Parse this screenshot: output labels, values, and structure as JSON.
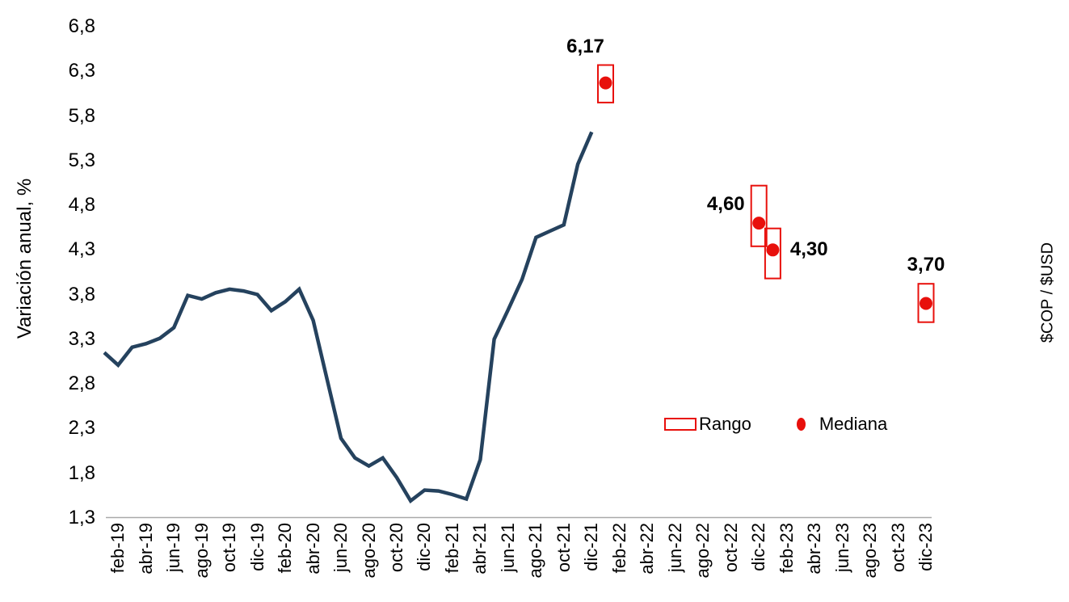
{
  "legend": {
    "rango_label": "Rango",
    "mediana_label": "Mediana"
  },
  "chart_data": {
    "type": "line",
    "title": "",
    "ylabel": "Variación anual, %",
    "right_axis_label": "$COP / $USD",
    "ylim": [
      1.3,
      6.8
    ],
    "ytick_step": 0.5,
    "grid": false,
    "legend_position": "inside-bottom-right",
    "yticks": [
      {
        "v": 6.8,
        "label": "6,8"
      },
      {
        "v": 6.3,
        "label": "6,3"
      },
      {
        "v": 5.8,
        "label": "5,8"
      },
      {
        "v": 5.3,
        "label": "5,3"
      },
      {
        "v": 4.8,
        "label": "4,8"
      },
      {
        "v": 4.3,
        "label": "4,3"
      },
      {
        "v": 3.8,
        "label": "3,8"
      },
      {
        "v": 3.3,
        "label": "3,3"
      },
      {
        "v": 2.8,
        "label": "2,8"
      },
      {
        "v": 2.3,
        "label": "2,3"
      },
      {
        "v": 1.8,
        "label": "1,8"
      },
      {
        "v": 1.3,
        "label": "1,3"
      }
    ],
    "x_categories_start": "ene-19",
    "x_categories_end": "dic-23",
    "xticklabels": [
      "feb-19",
      "abr-19",
      "jun-19",
      "ago-19",
      "oct-19",
      "dic-19",
      "feb-20",
      "abr-20",
      "jun-20",
      "ago-20",
      "oct-20",
      "dic-20",
      "feb-21",
      "abr-21",
      "jun-21",
      "ago-21",
      "oct-21",
      "dic-21",
      "feb-22",
      "abr-22",
      "jun-22",
      "ago-22",
      "oct-22",
      "dic-22",
      "feb-23",
      "abr-23",
      "jun-23",
      "ago-23",
      "oct-23",
      "dic-23"
    ],
    "series": [
      {
        "name": "observed-annual-variation",
        "start_month": "ene-19",
        "values": [
          3.15,
          3.01,
          3.21,
          3.25,
          3.31,
          3.43,
          3.79,
          3.75,
          3.82,
          3.86,
          3.84,
          3.8,
          3.62,
          3.72,
          3.86,
          3.51,
          2.85,
          2.19,
          1.97,
          1.88,
          1.97,
          1.75,
          1.49,
          1.61,
          1.6,
          1.56,
          1.51,
          1.95,
          3.3,
          3.63,
          3.97,
          4.44,
          4.51,
          4.58,
          5.26,
          5.62
        ]
      }
    ],
    "forecasts": [
      {
        "month": "ene-22",
        "label": "6,17",
        "median": 6.17,
        "range_low": 5.95,
        "range_high": 6.37,
        "label_side": "above",
        "label_dx": -25
      },
      {
        "month": "dic-22",
        "label": "4,60",
        "median": 4.6,
        "range_low": 4.34,
        "range_high": 5.02,
        "label_side": "left",
        "label_dx": 0
      },
      {
        "month": "ene-23",
        "label": "4,30",
        "median": 4.3,
        "range_low": 3.98,
        "range_high": 4.54,
        "label_side": "right",
        "label_dx": 0
      },
      {
        "month": "dic-23",
        "label": "3,70",
        "median": 3.7,
        "range_low": 3.49,
        "range_high": 3.92,
        "label_side": "above",
        "label_dx": 0
      }
    ],
    "colors": {
      "line": "#25425e",
      "red": "#e8100c",
      "axis_line": "#a9a9a9",
      "text": "#000000"
    }
  }
}
